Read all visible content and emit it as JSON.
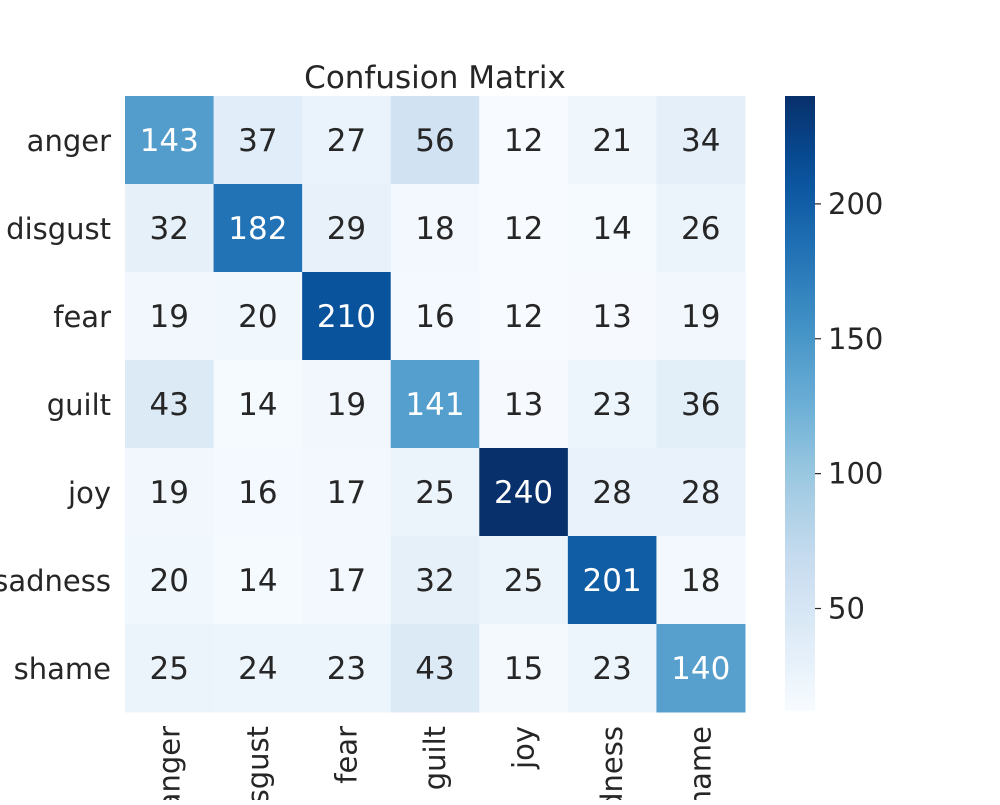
{
  "chart_data": {
    "type": "heatmap",
    "title": "Confusion Matrix",
    "xlabel": "",
    "ylabel": "",
    "row_labels": [
      "anger",
      "disgust",
      "fear",
      "guilt",
      "joy",
      "sadness",
      "shame"
    ],
    "col_labels": [
      "anger",
      "disgust",
      "fear",
      "guilt",
      "joy",
      "sadness",
      "shame"
    ],
    "values": [
      [
        143,
        37,
        27,
        56,
        12,
        21,
        34
      ],
      [
        32,
        182,
        29,
        18,
        12,
        14,
        26
      ],
      [
        19,
        20,
        210,
        16,
        12,
        13,
        19
      ],
      [
        43,
        14,
        19,
        141,
        13,
        23,
        36
      ],
      [
        19,
        16,
        17,
        25,
        240,
        28,
        28
      ],
      [
        20,
        14,
        17,
        32,
        25,
        201,
        18
      ],
      [
        25,
        24,
        23,
        43,
        15,
        23,
        140
      ]
    ],
    "colormap": "Blues",
    "color_range": [
      12,
      240
    ],
    "colorbar_ticks": [
      50,
      100,
      150,
      200
    ],
    "grid": false,
    "legend": "colorbar-right"
  }
}
